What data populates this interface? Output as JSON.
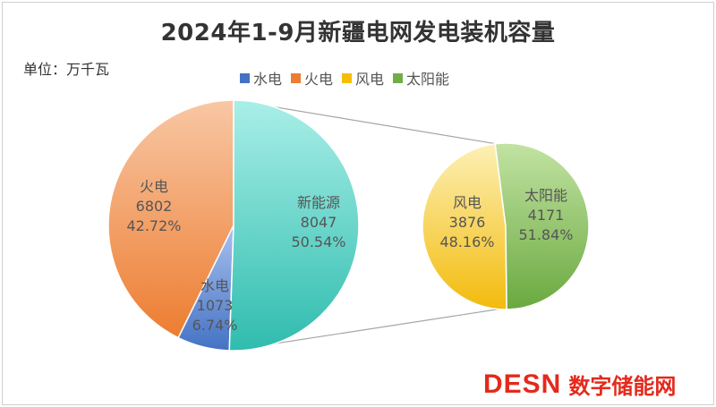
{
  "page": {
    "title": "2024年1-9月新疆电网发电装机容量",
    "unit": "单位：万千瓦",
    "watermark_logo": "DESN",
    "watermark_text": "数字储能网"
  },
  "colors": {
    "hydro": "#4472c4",
    "thermal": "#ed7d31",
    "wind": "#f5bf00",
    "solar": "#70ad47",
    "new_energy": "#3cc7ba"
  },
  "chart_data": {
    "type": "pie-of-pie",
    "title": "2024年1-9月新疆电网发电装机容量",
    "unit": "万千瓦",
    "legend": [
      "水电",
      "火电",
      "风电",
      "太阳能"
    ],
    "main_pie": [
      {
        "name": "水电",
        "value": 1073,
        "value_label": "1073",
        "percent_label": "6.74%"
      },
      {
        "name": "火电",
        "value": 6802,
        "value_label": "6802",
        "percent_label": "42.72%"
      },
      {
        "name": "新能源",
        "value": 8047,
        "value_label": "8047",
        "percent_label": "50.54%"
      }
    ],
    "secondary_pie": {
      "parent": "新能源",
      "slices": [
        {
          "name": "风电",
          "value": 3876,
          "value_label": "3876",
          "percent_label": "48.16%"
        },
        {
          "name": "太阳能",
          "value": 4171,
          "value_label": "4171",
          "percent_label": "51.84%"
        }
      ]
    }
  }
}
